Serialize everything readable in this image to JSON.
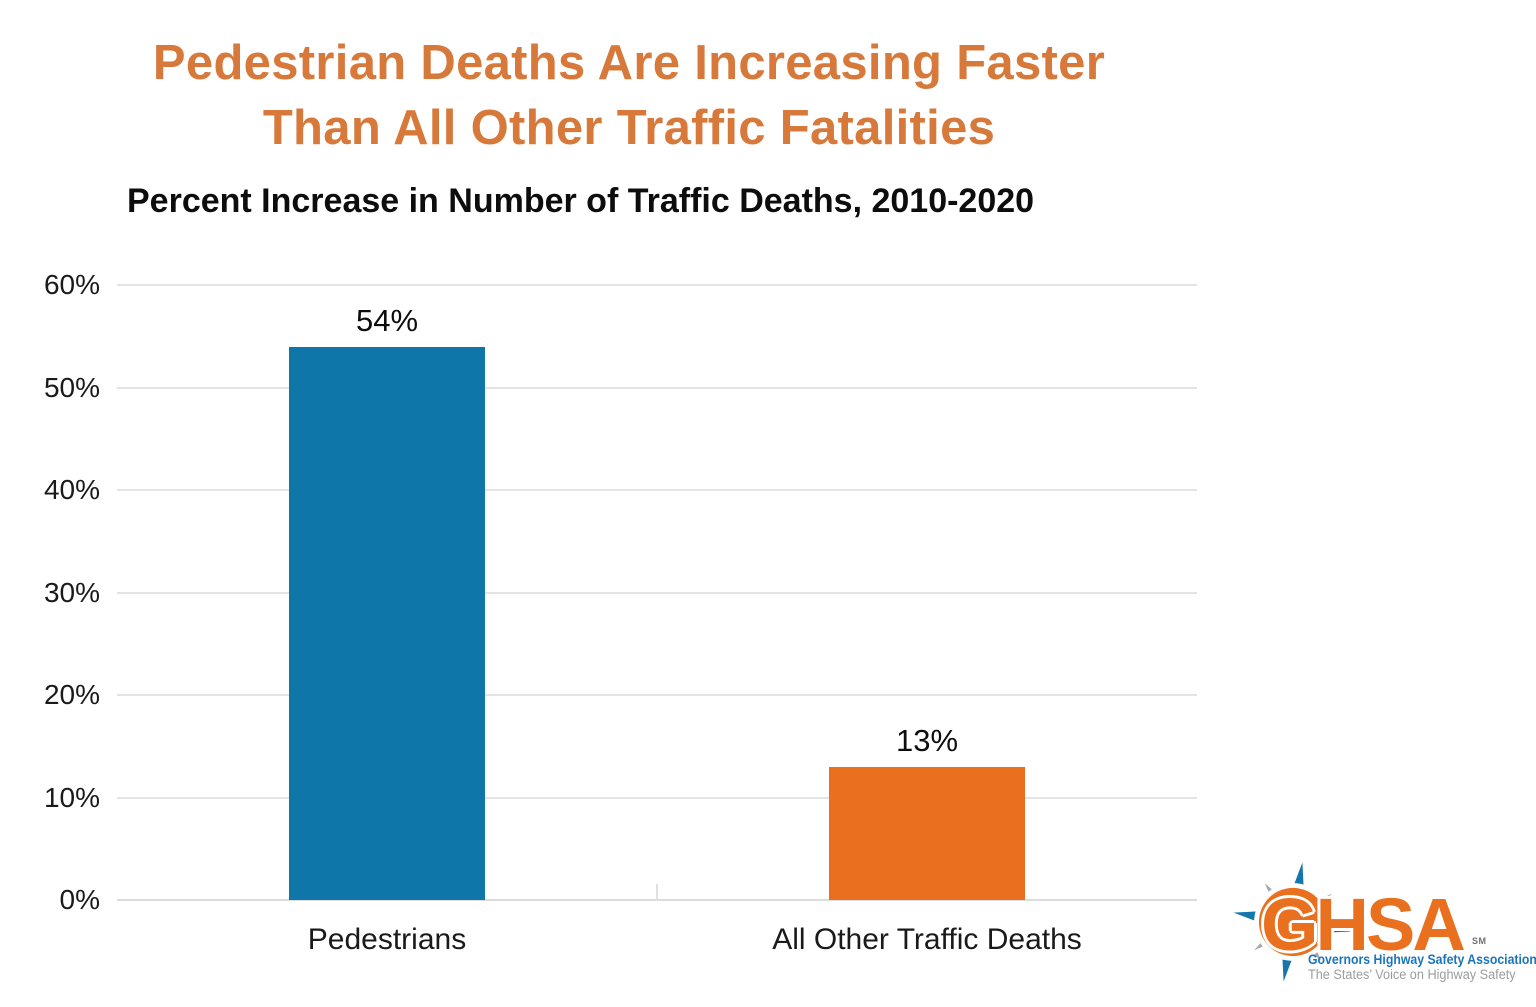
{
  "header": {
    "title_line1": "Pedestrian Deaths Are Increasing Faster",
    "title_line2": "Than All Other Traffic Fatalities",
    "subtitle": "Percent Increase in Number of Traffic Deaths, 2010-2020"
  },
  "chart_data": {
    "type": "bar",
    "title": "Pedestrian Deaths Are Increasing Faster Than All Other Traffic Fatalities",
    "subtitle": "Percent Increase in Number of Traffic Deaths, 2010-2020",
    "categories": [
      "Pedestrians",
      "All Other Traffic Deaths"
    ],
    "values": [
      54,
      13
    ],
    "value_labels": [
      "54%",
      "13%"
    ],
    "bar_colors": [
      "#0f76a9",
      "#e8701f"
    ],
    "ylim": [
      0,
      60
    ],
    "yticks": [
      0,
      10,
      20,
      30,
      40,
      50,
      60
    ],
    "ytick_labels": [
      "0%",
      "10%",
      "20%",
      "30%",
      "40%",
      "50%",
      "60%"
    ],
    "grid": "horizontal-gridlines",
    "legend_position": "none"
  },
  "logo": {
    "name": "GHSA",
    "sm": "SM",
    "org_name": "Governors Highway Safety Association",
    "registered_mark": "®",
    "tagline": "The States’ Voice on Highway Safety"
  },
  "colors": {
    "title_orange": "#d7793a",
    "pedestrians_bar_blue": "#0f76a9",
    "other_traffic_bar_orange": "#e8701f",
    "logo_letters_orange": "#e8701f",
    "logo_org_blue": "#1c75bb",
    "compass_blue": "#1576ad",
    "compass_gray": "#a7a9ac",
    "gridline_gray": "#e4e4e4"
  }
}
